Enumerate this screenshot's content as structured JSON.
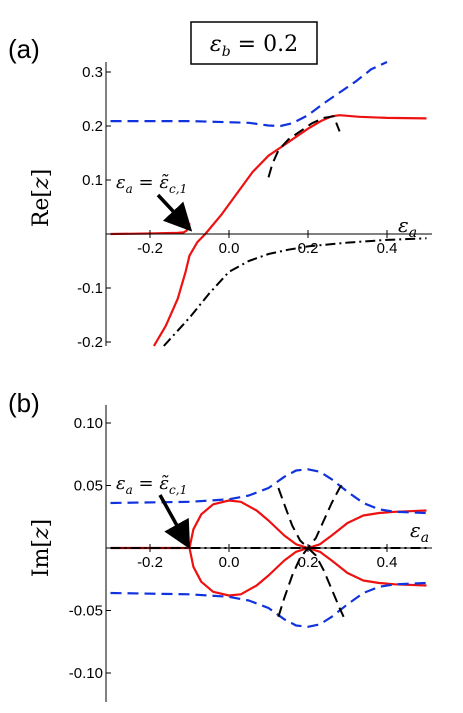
{
  "header": {
    "parameter_label": "εb = 0.2"
  },
  "colors": {
    "real_branch": "#ee1111",
    "blue_branch": "#1133dd",
    "black_branch": "#000000"
  },
  "chart_data": [
    {
      "type": "line",
      "panel": "(a)",
      "xlabel": "εa",
      "ylabel": "Re[z]",
      "xlim": [
        -0.3,
        0.5
      ],
      "ylim": [
        -0.21,
        0.33
      ],
      "x_ticks": [
        "-0.2",
        "0.0",
        "0.2",
        "0.4"
      ],
      "y_ticks": [
        "-0.2",
        "-0.1",
        "0.1",
        "0.2",
        "0.3"
      ],
      "annotation": "εa = ε̃c,1",
      "series": [
        {
          "color": "red",
          "dash": "solid",
          "x": [
            -0.3,
            -0.2,
            -0.13,
            -0.115,
            -0.108,
            -0.103,
            -0.1
          ],
          "y": [
            0.0,
            0.001,
            0.002,
            0.003,
            0.006,
            0.01,
            0.02
          ]
        },
        {
          "color": "red",
          "dash": "solid",
          "x": [
            -0.19,
            -0.16,
            -0.13,
            -0.11,
            -0.1,
            -0.08,
            -0.06,
            -0.02,
            0.02,
            0.06,
            0.1,
            0.13,
            0.17,
            0.2,
            0.235,
            0.26,
            0.28,
            0.33,
            0.4,
            0.5
          ],
          "y": [
            -0.21,
            -0.17,
            -0.12,
            -0.07,
            -0.04,
            -0.015,
            0.0,
            0.035,
            0.075,
            0.115,
            0.145,
            0.16,
            0.18,
            0.195,
            0.21,
            0.218,
            0.22,
            0.217,
            0.215,
            0.214
          ]
        },
        {
          "color": "blue",
          "dash": "dashed",
          "x": [
            -0.3,
            -0.1,
            0.05,
            0.1,
            0.13,
            0.16,
            0.2,
            0.24,
            0.28,
            0.32,
            0.36,
            0.4
          ],
          "y": [
            0.209,
            0.209,
            0.206,
            0.201,
            0.2,
            0.205,
            0.22,
            0.242,
            0.262,
            0.282,
            0.305,
            0.33
          ]
        },
        {
          "color": "black",
          "dash": "dashed",
          "x": [
            0.1,
            0.11,
            0.125,
            0.15,
            0.18,
            0.21,
            0.24,
            0.265,
            0.28
          ],
          "y": [
            0.105,
            0.13,
            0.155,
            0.175,
            0.19,
            0.205,
            0.215,
            0.218,
            0.19
          ]
        },
        {
          "color": "black",
          "dash": "dash-dot",
          "x": [
            -0.165,
            -0.1,
            -0.05,
            0.0,
            0.05,
            0.1,
            0.15,
            0.2,
            0.3,
            0.4,
            0.5
          ],
          "y": [
            -0.21,
            -0.155,
            -0.11,
            -0.07,
            -0.05,
            -0.037,
            -0.029,
            -0.023,
            -0.016,
            -0.011,
            -0.008
          ]
        }
      ]
    },
    {
      "type": "line",
      "panel": "(b)",
      "xlabel": "εa",
      "ylabel": "Im[z]",
      "xlim": [
        -0.3,
        0.5
      ],
      "ylim": [
        -0.11,
        0.11
      ],
      "x_ticks": [
        "-0.2",
        "0.0",
        "0.2",
        "0.4"
      ],
      "y_ticks": [
        "-0.10",
        "-0.05",
        "0.05",
        "0.10"
      ],
      "annotation": "εa = ε̃c,1",
      "series": [
        {
          "color": "red",
          "dash": "solid",
          "x": [
            -0.3,
            -0.1,
            -0.09,
            -0.07,
            -0.04,
            0.0,
            0.03,
            0.07,
            0.1,
            0.14,
            0.17,
            0.2,
            0.23,
            0.26,
            0.3,
            0.34,
            0.38,
            0.42,
            0.5
          ],
          "y": [
            0.0,
            0.0,
            0.015,
            0.027,
            0.035,
            0.038,
            0.037,
            0.03,
            0.022,
            0.01,
            0.003,
            0.0,
            0.003,
            0.01,
            0.02,
            0.026,
            0.028,
            0.029,
            0.03
          ]
        },
        {
          "color": "red",
          "dash": "solid",
          "x": [
            -0.1,
            -0.09,
            -0.07,
            -0.04,
            0.0,
            0.03,
            0.07,
            0.1,
            0.14,
            0.17,
            0.2,
            0.23,
            0.26,
            0.3,
            0.34,
            0.38,
            0.42,
            0.5
          ],
          "y": [
            0.0,
            -0.015,
            -0.027,
            -0.035,
            -0.038,
            -0.037,
            -0.03,
            -0.022,
            -0.01,
            -0.003,
            0.0,
            -0.003,
            -0.01,
            -0.02,
            -0.026,
            -0.028,
            -0.029,
            -0.03
          ]
        },
        {
          "color": "blue",
          "dash": "dashed",
          "x": [
            -0.3,
            -0.1,
            0.0,
            0.05,
            0.1,
            0.14,
            0.17,
            0.2,
            0.23,
            0.26,
            0.3,
            0.34,
            0.38,
            0.42,
            0.5
          ],
          "y": [
            0.036,
            0.037,
            0.039,
            0.042,
            0.048,
            0.057,
            0.062,
            0.063,
            0.061,
            0.055,
            0.045,
            0.036,
            0.031,
            0.029,
            0.028
          ]
        },
        {
          "color": "blue",
          "dash": "dashed",
          "x": [
            -0.3,
            -0.1,
            0.0,
            0.05,
            0.1,
            0.14,
            0.17,
            0.2,
            0.23,
            0.26,
            0.3,
            0.34,
            0.38,
            0.42,
            0.5
          ],
          "y": [
            -0.036,
            -0.037,
            -0.039,
            -0.042,
            -0.048,
            -0.057,
            -0.062,
            -0.063,
            -0.061,
            -0.055,
            -0.045,
            -0.036,
            -0.031,
            -0.029,
            -0.028
          ]
        },
        {
          "color": "black",
          "dash": "dashed",
          "x": [
            0.125,
            0.14,
            0.16,
            0.18,
            0.2,
            0.22,
            0.24,
            0.26,
            0.28,
            0.29
          ],
          "y": [
            0.048,
            0.035,
            0.018,
            0.006,
            0.0,
            -0.006,
            -0.018,
            -0.033,
            -0.048,
            -0.055
          ]
        },
        {
          "color": "black",
          "dash": "dashed",
          "x": [
            0.125,
            0.14,
            0.16,
            0.18,
            0.2,
            0.22,
            0.24,
            0.26,
            0.28,
            0.29
          ],
          "y": [
            -0.055,
            -0.04,
            -0.022,
            -0.008,
            0.0,
            0.008,
            0.022,
            0.036,
            0.048,
            0.052
          ]
        },
        {
          "color": "black",
          "dash": "dash-dot",
          "x": [
            -0.3,
            0.5
          ],
          "y": [
            0.0,
            0.0
          ]
        }
      ]
    }
  ]
}
